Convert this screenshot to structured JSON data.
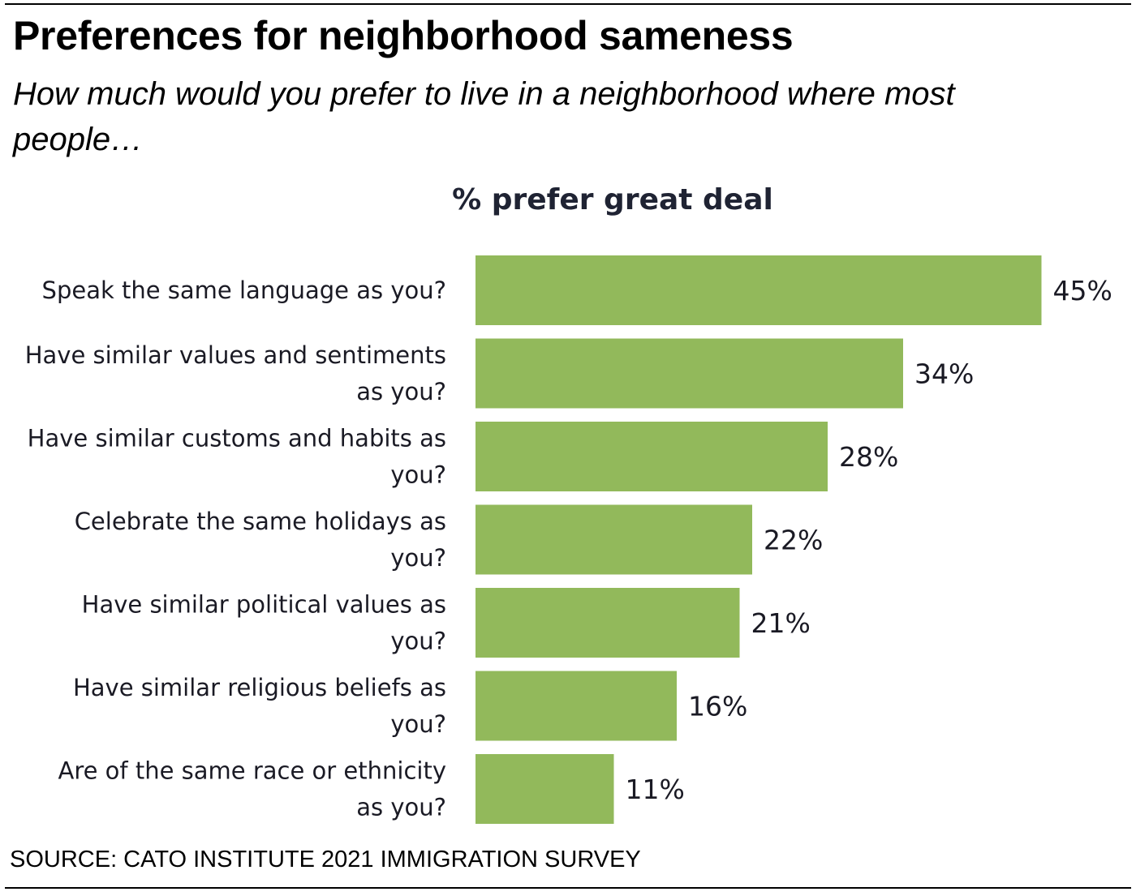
{
  "header": {
    "title": "Preferences for neighborhood sameness",
    "subtitle": "How much would you prefer to live in a neighborhood where most people…"
  },
  "footer": {
    "source": "SOURCE: CATO INSTITUTE 2021 IMMIGRATION SURVEY"
  },
  "colors": {
    "bar": "#92b95b",
    "text": "#1a1a24"
  },
  "chart_data": {
    "type": "bar",
    "orientation": "horizontal",
    "title": "% prefer great deal",
    "xlabel": "",
    "ylabel": "",
    "xlim": [
      0,
      45
    ],
    "grid": false,
    "legend": "none",
    "categories": [
      [
        "Speak the same language as you?"
      ],
      [
        "Have similar values and sentiments",
        "as you?"
      ],
      [
        "Have similar customs and habits as",
        "you?"
      ],
      [
        "Celebrate the same holidays as",
        "you?"
      ],
      [
        "Have similar political values as",
        "you?"
      ],
      [
        "Have similar religious beliefs as",
        "you?"
      ],
      [
        "Are of the same race or ethnicity",
        "as you?"
      ]
    ],
    "values": [
      45,
      34,
      28,
      22,
      21,
      16,
      11
    ],
    "value_labels": [
      "45%",
      "34%",
      "28%",
      "22%",
      "21%",
      "16%",
      "11%"
    ]
  }
}
